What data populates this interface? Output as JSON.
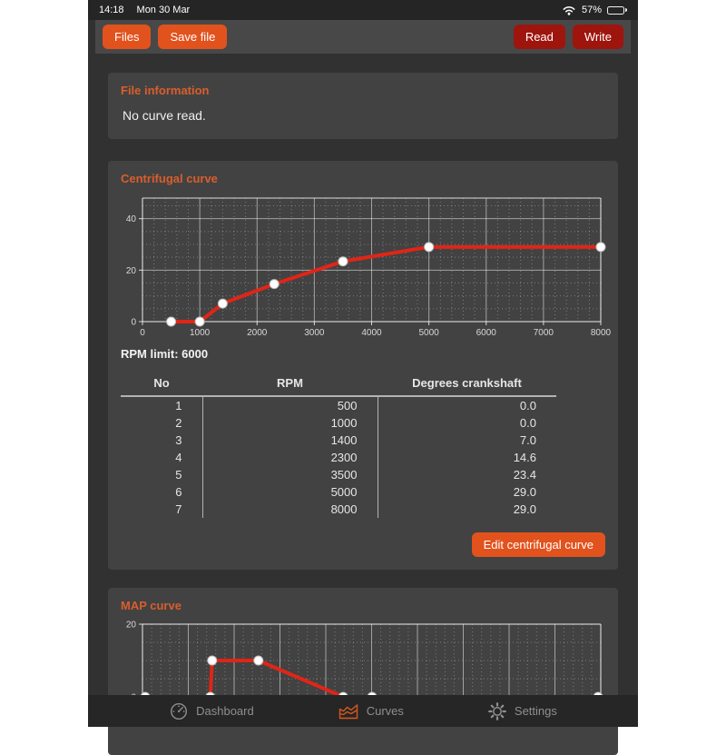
{
  "status_bar": {
    "time": "14:18",
    "date": "Mon 30 Mar",
    "battery_percent": "57%",
    "icons": [
      "wifi-icon",
      "battery-icon"
    ]
  },
  "toolbar": {
    "files_label": "Files",
    "save_file_label": "Save file",
    "read_label": "Read",
    "write_label": "Write"
  },
  "file_info": {
    "title": "File information",
    "message": "No curve read."
  },
  "centrifugal": {
    "title": "Centrifugal curve",
    "rpm_limit_label": "RPM limit: 6000",
    "table": {
      "headers": [
        "No",
        "RPM",
        "Degrees crankshaft"
      ],
      "rows": [
        [
          "1",
          "500",
          "0.0"
        ],
        [
          "2",
          "1000",
          "0.0"
        ],
        [
          "3",
          "1400",
          "7.0"
        ],
        [
          "4",
          "2300",
          "14.6"
        ],
        [
          "5",
          "3500",
          "23.4"
        ],
        [
          "6",
          "5000",
          "29.0"
        ],
        [
          "7",
          "8000",
          "29.0"
        ]
      ]
    },
    "edit_button_label": "Edit centrifugal curve"
  },
  "map": {
    "title": "MAP curve"
  },
  "tab_bar": {
    "items": [
      {
        "label": "Dashboard",
        "icon": "speedometer-icon",
        "active": false
      },
      {
        "label": "Curves",
        "icon": "curves-chart-icon",
        "active": true
      },
      {
        "label": "Settings",
        "icon": "gear-icon",
        "active": false
      }
    ]
  },
  "colors": {
    "accent_orange": "#e2521d",
    "heading_orange": "#d95e2c",
    "dark_red_button": "#9e150e",
    "chart_line_red": "#e02517",
    "card_background": "#424242",
    "page_background": "#313131"
  },
  "chart_data": [
    {
      "type": "line",
      "title": "Centrifugal curve",
      "x": [
        500,
        1000,
        1400,
        2300,
        3500,
        5000,
        8000
      ],
      "y": [
        0.0,
        0.0,
        7.0,
        14.6,
        23.4,
        29.0,
        29.0
      ],
      "xlim": [
        0,
        8000
      ],
      "ylim": [
        0,
        48
      ],
      "xticks": [
        0,
        1000,
        2000,
        3000,
        4000,
        5000,
        6000,
        7000,
        8000
      ],
      "yticks": [
        0,
        20,
        40
      ],
      "x_minor": 200,
      "y_minor": 5,
      "grid": true,
      "legend": false,
      "line_color": "#e02517",
      "marker": "white-circle"
    },
    {
      "type": "line",
      "title": "MAP curve",
      "x": [
        0.006,
        0.148,
        0.152,
        0.253,
        0.438,
        0.501,
        0.994
      ],
      "x_note": "x axis labels not visible in screenshot; values normalized 0-1",
      "y": [
        0,
        0,
        10,
        10,
        0,
        0,
        0
      ],
      "xlim": [
        0,
        1
      ],
      "ylim": [
        -6,
        20
      ],
      "xticks": [],
      "yticks": [
        0,
        20
      ],
      "x_major": 0.1,
      "x_minor": 0.02,
      "y_minor": 5,
      "grid": true,
      "legend": false,
      "line_color": "#e02517",
      "marker": "white-circle"
    }
  ]
}
